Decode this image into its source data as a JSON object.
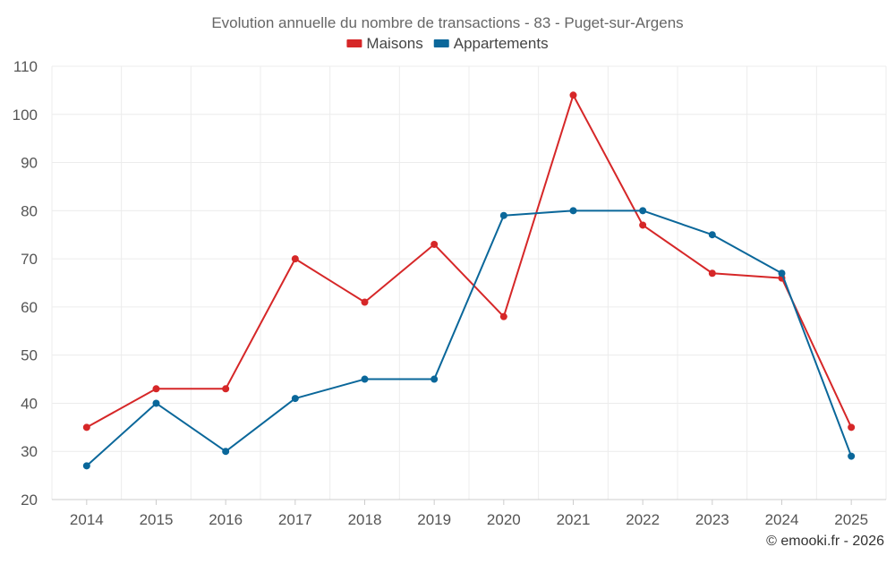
{
  "chart_data": {
    "type": "line",
    "title": "Evolution annuelle du nombre de transactions - 83 - Puget-sur-Argens",
    "categories": [
      "2014",
      "2015",
      "2016",
      "2017",
      "2018",
      "2019",
      "2020",
      "2021",
      "2022",
      "2023",
      "2024",
      "2025"
    ],
    "series": [
      {
        "name": "Maisons",
        "color": "#d62728",
        "values": [
          35,
          43,
          43,
          70,
          61,
          73,
          58,
          104,
          77,
          67,
          66,
          35
        ]
      },
      {
        "name": "Appartements",
        "color": "#0a679a",
        "values": [
          27,
          40,
          30,
          41,
          45,
          45,
          79,
          80,
          80,
          75,
          67,
          29
        ]
      }
    ],
    "ylim": [
      20,
      110
    ],
    "yticks": [
      "20",
      "30",
      "40",
      "50",
      "60",
      "70",
      "80",
      "90",
      "100",
      "110"
    ],
    "xlabel": "",
    "ylabel": "",
    "grid": true,
    "legend_position": "top-center"
  },
  "credit": "© emooki.fr - 2026"
}
